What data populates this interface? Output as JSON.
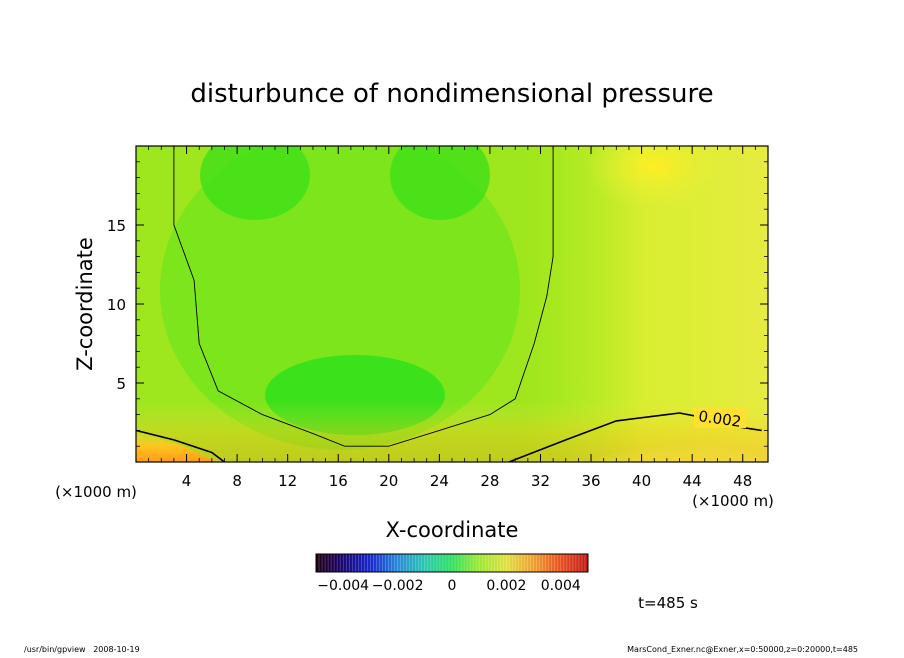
{
  "chart_data": {
    "type": "heatmap",
    "title": "disturbunce of nondimensional pressure",
    "xlabel": "X-coordinate",
    "ylabel": "Z-coordinate",
    "x_unit_left": "(×1000 m)",
    "x_unit_right": "(×1000 m)",
    "xlim": [
      0,
      50
    ],
    "ylim": [
      0,
      20
    ],
    "xticks": [
      4,
      8,
      12,
      16,
      20,
      24,
      28,
      32,
      36,
      40,
      44,
      48
    ],
    "yticks": [
      5,
      10,
      15
    ],
    "contour_label": "0.002",
    "contour_level": 0.002,
    "colorbar": {
      "range": [
        -0.005,
        0.005
      ],
      "ticks": [
        {
          "value": -0.004,
          "label": "−0.004"
        },
        {
          "value": -0.002,
          "label": "−0.002"
        },
        {
          "value": 0,
          "label": "0"
        },
        {
          "value": 0.002,
          "label": "0.002"
        },
        {
          "value": 0.004,
          "label": "0.004"
        }
      ]
    },
    "time_label": "t=485 s",
    "footer_left": "/usr/bin/gpview   2008-10-19",
    "footer_right": "MarsCond_Exner.nc@Exner,x=0:50000,z=0:20000,t=485",
    "contour_lines": [
      {
        "name": "upper",
        "points": [
          [
            3,
            20
          ],
          [
            3,
            15
          ],
          [
            4.6,
            11.5
          ],
          [
            5,
            7.5
          ],
          [
            6.5,
            4.5
          ],
          [
            10,
            3
          ],
          [
            14,
            1.8
          ],
          [
            16.5,
            1
          ],
          [
            20,
            1
          ],
          [
            24,
            2
          ],
          [
            28,
            3
          ],
          [
            30,
            4
          ],
          [
            31.5,
            7.5
          ],
          [
            32.5,
            10.5
          ],
          [
            33,
            13
          ],
          [
            33,
            15
          ],
          [
            33,
            20
          ]
        ]
      },
      {
        "name": "lower-left",
        "points": [
          [
            0,
            2
          ],
          [
            3,
            1.4
          ],
          [
            6,
            0.6
          ],
          [
            7,
            0
          ]
        ]
      },
      {
        "name": "lower-right",
        "points": [
          [
            29.5,
            0
          ],
          [
            34,
            1.4
          ],
          [
            38,
            2.6
          ],
          [
            42,
            3
          ],
          [
            43,
            3.1
          ],
          [
            45,
            2.8
          ],
          [
            47,
            2.3
          ],
          [
            49.5,
            2
          ]
        ]
      }
    ]
  }
}
